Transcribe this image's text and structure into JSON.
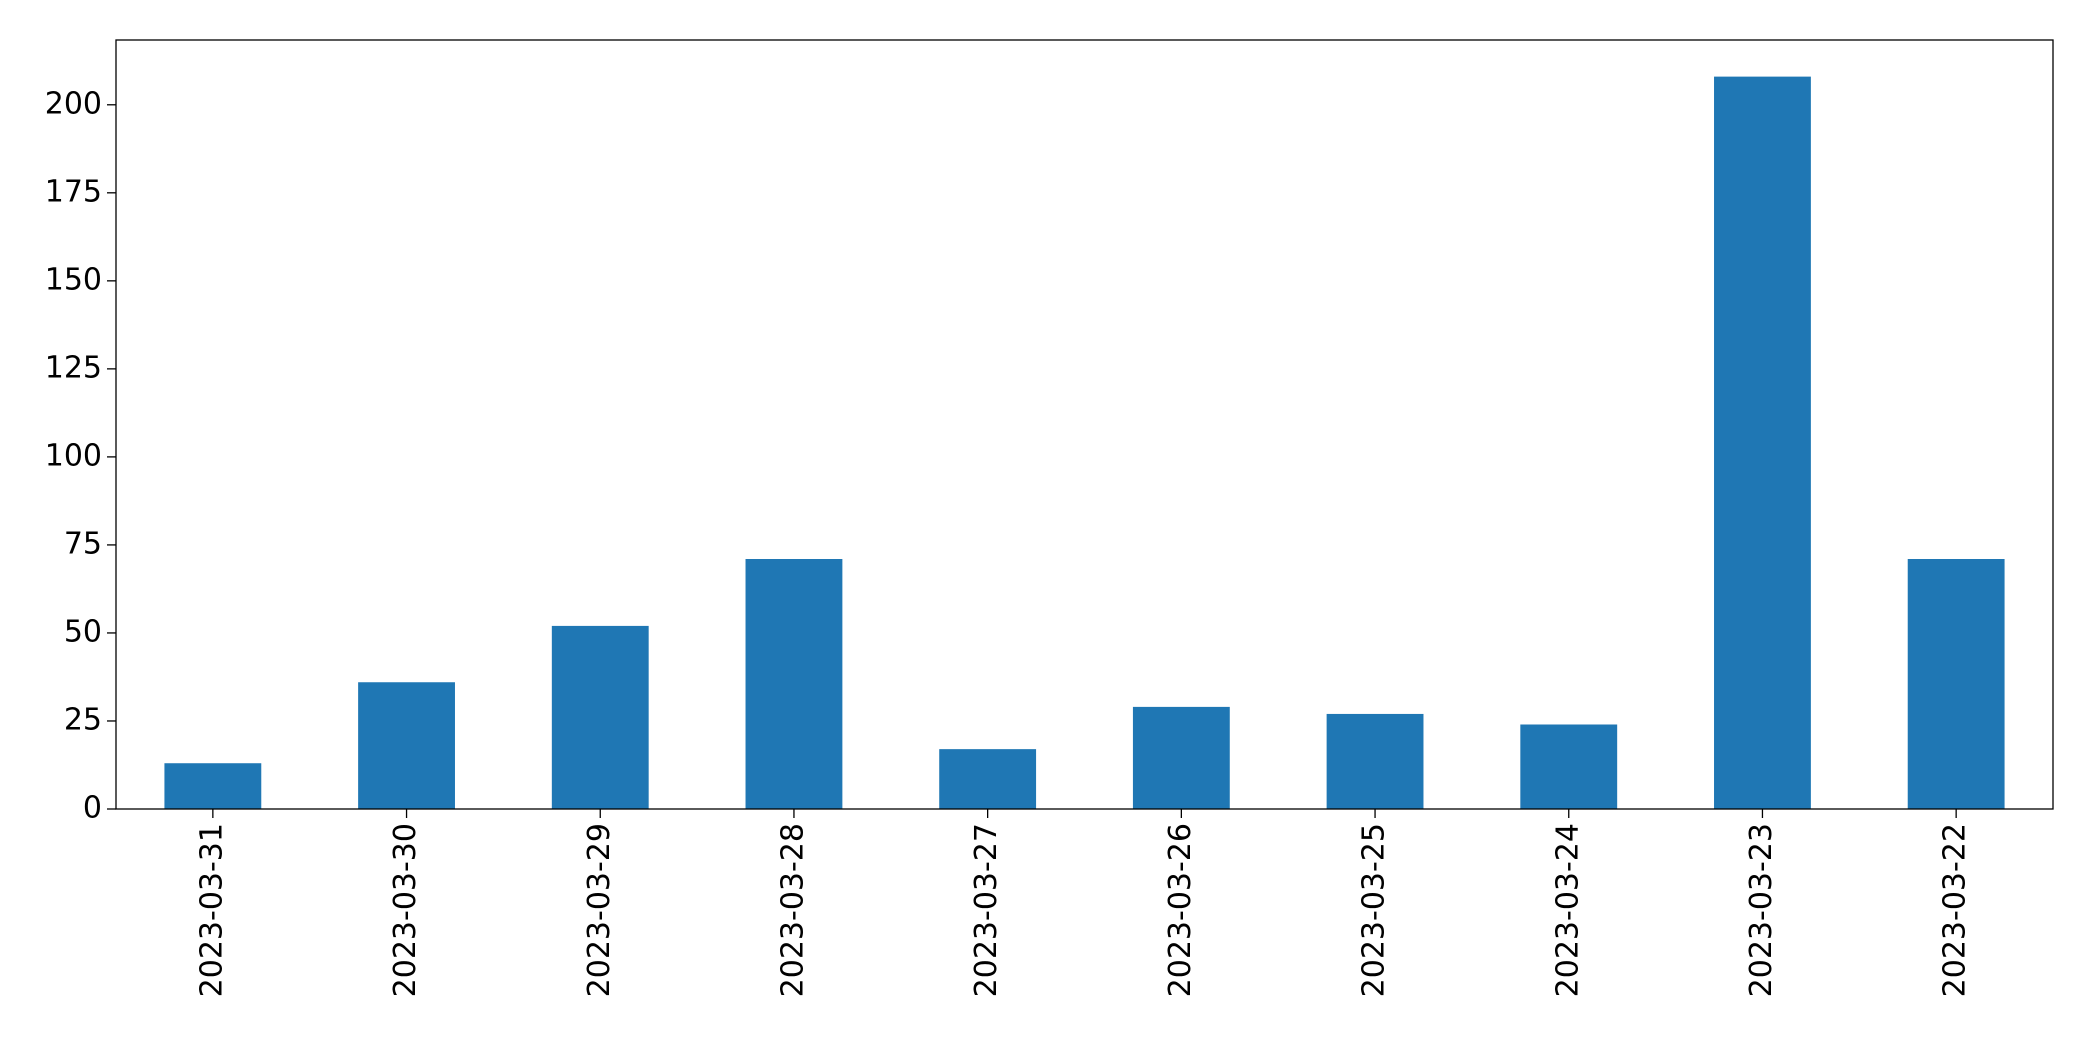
{
  "chart_data": {
    "type": "bar",
    "categories": [
      "2023-03-31",
      "2023-03-30",
      "2023-03-29",
      "2023-03-28",
      "2023-03-27",
      "2023-03-26",
      "2023-03-25",
      "2023-03-24",
      "2023-03-23",
      "2023-03-22"
    ],
    "values": [
      13,
      36,
      52,
      71,
      17,
      29,
      27,
      24,
      208,
      71
    ],
    "color": "#1f77b4",
    "ylim": [
      0,
      218.4
    ],
    "yticks": [
      0,
      25,
      50,
      75,
      100,
      125,
      150,
      175,
      200
    ],
    "grid": false
  }
}
